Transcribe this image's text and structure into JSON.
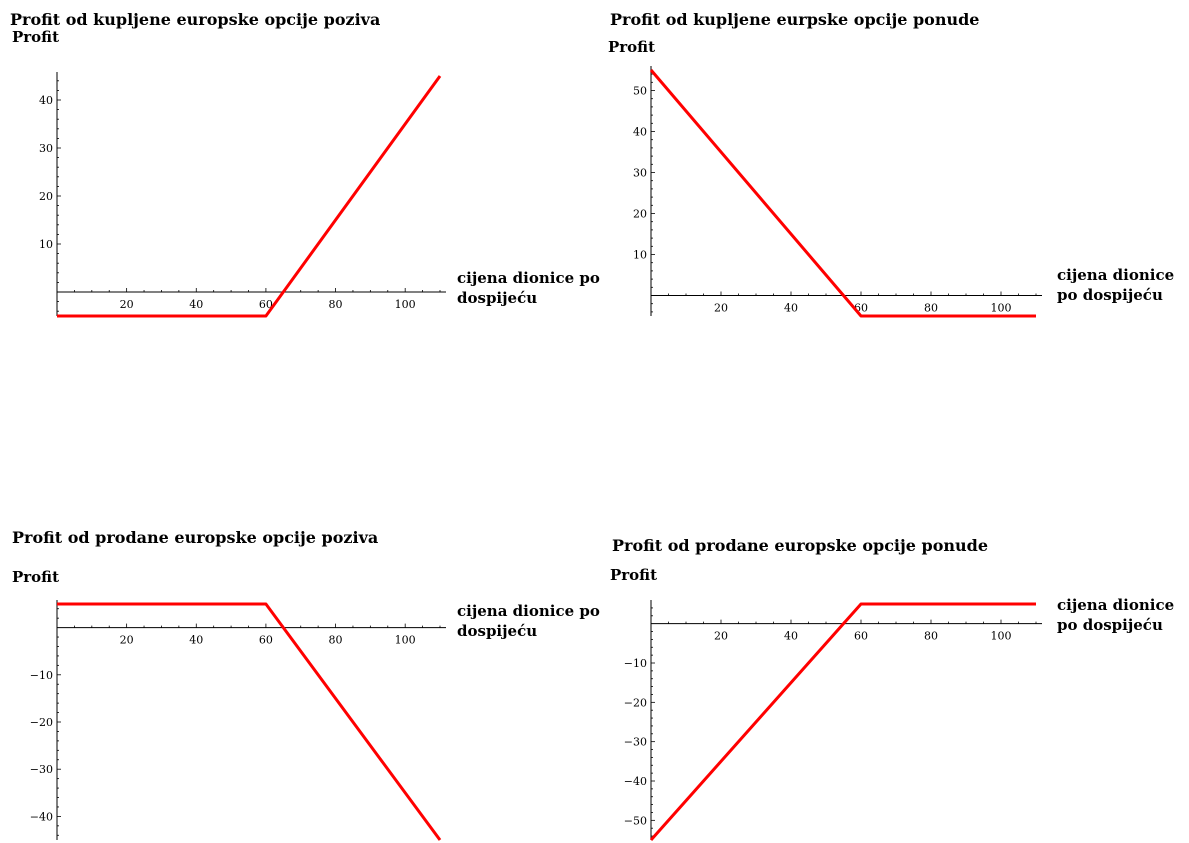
{
  "line_color": "#ff0000",
  "chart_data": [
    {
      "type": "line",
      "title": "Profit od kupljene europske opcije poziva",
      "ylabel": "Profit",
      "xlabel_lines": [
        "cijena dionice po",
        "dospijeću"
      ],
      "xlim": [
        0,
        110
      ],
      "ylim": [
        -5,
        45
      ],
      "xticks": [
        20,
        40,
        60,
        80,
        100
      ],
      "yticks": [
        10,
        20,
        30,
        40
      ],
      "series": [
        {
          "x": [
            0,
            60,
            65,
            110
          ],
          "y": [
            -5,
            -5,
            0,
            45
          ]
        }
      ]
    },
    {
      "type": "line",
      "title": "Profit od kupljene eurpske opcije ponude",
      "ylabel": "Profit",
      "xlabel_lines": [
        "cijena dionice",
        "po dospijeću"
      ],
      "xlim": [
        0,
        110
      ],
      "ylim": [
        -5,
        55
      ],
      "xticks": [
        20,
        40,
        60,
        80,
        100
      ],
      "yticks": [
        10,
        20,
        30,
        40,
        50
      ],
      "series": [
        {
          "x": [
            0,
            55,
            60,
            110
          ],
          "y": [
            55,
            0,
            -5,
            -5
          ]
        }
      ]
    },
    {
      "type": "line",
      "title": "Profit od prodane europske opcije poziva",
      "ylabel": "Profit",
      "xlabel_lines": [
        "cijena dionice po",
        "dospijeću"
      ],
      "xlim": [
        0,
        110
      ],
      "ylim": [
        -45,
        5
      ],
      "xticks": [
        20,
        40,
        60,
        80,
        100
      ],
      "yticks": [
        -10,
        -20,
        -30,
        -40
      ],
      "series": [
        {
          "x": [
            0,
            60,
            65,
            110
          ],
          "y": [
            5,
            5,
            0,
            -45
          ]
        }
      ]
    },
    {
      "type": "line",
      "title": "Profit od prodane europske opcije ponude",
      "ylabel": "Profit",
      "xlabel_lines": [
        "cijena dionice",
        "po dospijeću"
      ],
      "xlim": [
        0,
        110
      ],
      "ylim": [
        -55,
        5
      ],
      "xticks": [
        20,
        40,
        60,
        80,
        100
      ],
      "yticks": [
        -10,
        -20,
        -30,
        -40,
        -50
      ],
      "series": [
        {
          "x": [
            0,
            55,
            60,
            110
          ],
          "y": [
            -55,
            0,
            5,
            5
          ]
        }
      ]
    }
  ]
}
